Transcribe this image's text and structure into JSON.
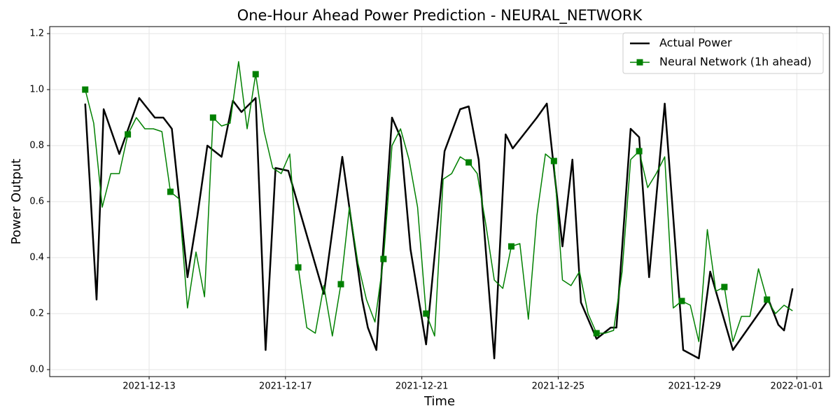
{
  "chart_data": {
    "type": "line",
    "title": "One-Hour Ahead Power Prediction - NEURAL_NETWORK",
    "x_label": "Time",
    "y_label": "Power Output",
    "xlim": [
      "2021-12-10T02:00",
      "2022-01-01T23:00"
    ],
    "xticks": [
      "2021-12-13",
      "2021-12-17",
      "2021-12-21",
      "2021-12-25",
      "2021-12-29",
      "2022-01-01"
    ],
    "ylim": [
      -0.025,
      1.225
    ],
    "yticks": [
      {
        "value": 0,
        "label": "0.0"
      },
      0.2,
      0.4,
      0.6,
      0.8,
      {
        "value": 1,
        "label": "1.0"
      },
      1.2
    ],
    "grid": true,
    "legend": "upper right",
    "series": [
      {
        "name": "Actual Power",
        "color": "#000000",
        "line_width": 2.5,
        "x": [
          "2021-12-11T03:00",
          "2021-12-11T11:00",
          "2021-12-11T16:00",
          "2021-12-12T03:00",
          "2021-12-12T17:00",
          "2021-12-13T04:00",
          "2021-12-13T10:00",
          "2021-12-13T16:00",
          "2021-12-14T03:00",
          "2021-12-14T10:00",
          "2021-12-14T17:00",
          "2021-12-15T03:00",
          "2021-12-15T11:00",
          "2021-12-15T17:00",
          "2021-12-16T03:00",
          "2021-12-16T10:00",
          "2021-12-16T17:00",
          "2021-12-17T02:00",
          "2021-12-17T11:00",
          "2021-12-18T03:00",
          "2021-12-18T16:00",
          "2021-12-19T06:00",
          "2021-12-19T10:00",
          "2021-12-19T16:00",
          "2021-12-20T03:00",
          "2021-12-20T09:00",
          "2021-12-20T16:00",
          "2021-12-21T03:00",
          "2021-12-21T16:00",
          "2021-12-22T03:00",
          "2021-12-22T09:00",
          "2021-12-22T16:00",
          "2021-12-23T03:00",
          "2021-12-23T11:00",
          "2021-12-23T16:00",
          "2021-12-24T09:00",
          "2021-12-24T16:00",
          "2021-12-25T03:00",
          "2021-12-25T10:00",
          "2021-12-25T16:00",
          "2021-12-26T03:00",
          "2021-12-26T13:00",
          "2021-12-26T17:00",
          "2021-12-27T03:00",
          "2021-12-27T09:00",
          "2021-12-27T16:00",
          "2021-12-28T03:00",
          "2021-12-28T16:00",
          "2021-12-29T03:00",
          "2021-12-29T11:00",
          "2021-12-30T03:00",
          "2021-12-31T04:00",
          "2021-12-31T11:00",
          "2021-12-31T15:00",
          "2021-12-31T21:00"
        ],
        "values": [
          0.95,
          0.25,
          0.93,
          0.77,
          0.97,
          0.9,
          0.9,
          0.86,
          0.33,
          0.55,
          0.8,
          0.76,
          0.96,
          0.92,
          0.97,
          0.07,
          0.72,
          0.71,
          0.55,
          0.27,
          0.76,
          0.25,
          0.15,
          0.07,
          0.9,
          0.83,
          0.43,
          0.09,
          0.78,
          0.93,
          0.94,
          0.75,
          0.04,
          0.84,
          0.79,
          0.9,
          0.95,
          0.44,
          0.75,
          0.24,
          0.11,
          0.15,
          0.15,
          0.86,
          0.83,
          0.33,
          0.95,
          0.07,
          0.04,
          0.35,
          0.07,
          0.25,
          0.16,
          0.14,
          0.29
        ]
      },
      {
        "name": "Neural Network (1h ahead)",
        "color": "#008000",
        "line_width": 1.5,
        "marker": "square",
        "markevery": 5,
        "x": [
          "2021-12-11T03:00",
          "2021-12-11T09:00",
          "2021-12-11T15:00",
          "2021-12-11T21:00",
          "2021-12-12T03:00",
          "2021-12-12T09:00",
          "2021-12-12T15:00",
          "2021-12-12T21:00",
          "2021-12-13T03:00",
          "2021-12-13T09:00",
          "2021-12-13T15:00",
          "2021-12-13T21:00",
          "2021-12-14T03:00",
          "2021-12-14T09:00",
          "2021-12-14T15:00",
          "2021-12-14T21:00",
          "2021-12-15T03:00",
          "2021-12-15T09:00",
          "2021-12-15T15:00",
          "2021-12-15T21:00",
          "2021-12-16T03:00",
          "2021-12-16T09:00",
          "2021-12-16T15:00",
          "2021-12-16T21:00",
          "2021-12-17T03:00",
          "2021-12-17T09:00",
          "2021-12-17T15:00",
          "2021-12-17T21:00",
          "2021-12-18T03:00",
          "2021-12-18T09:00",
          "2021-12-18T15:00",
          "2021-12-18T21:00",
          "2021-12-19T03:00",
          "2021-12-19T09:00",
          "2021-12-19T15:00",
          "2021-12-19T21:00",
          "2021-12-20T03:00",
          "2021-12-20T09:00",
          "2021-12-20T15:00",
          "2021-12-20T21:00",
          "2021-12-21T03:00",
          "2021-12-21T09:00",
          "2021-12-21T15:00",
          "2021-12-21T21:00",
          "2021-12-22T03:00",
          "2021-12-22T09:00",
          "2021-12-22T15:00",
          "2021-12-22T21:00",
          "2021-12-23T03:00",
          "2021-12-23T09:00",
          "2021-12-23T15:00",
          "2021-12-23T21:00",
          "2021-12-24T03:00",
          "2021-12-24T09:00",
          "2021-12-24T15:00",
          "2021-12-24T21:00",
          "2021-12-25T03:00",
          "2021-12-25T09:00",
          "2021-12-25T15:00",
          "2021-12-25T21:00",
          "2021-12-26T03:00",
          "2021-12-26T09:00",
          "2021-12-26T15:00",
          "2021-12-26T21:00",
          "2021-12-27T03:00",
          "2021-12-27T09:00",
          "2021-12-27T15:00",
          "2021-12-27T21:00",
          "2021-12-28T03:00",
          "2021-12-28T09:00",
          "2021-12-28T15:00",
          "2021-12-28T21:00",
          "2021-12-29T03:00",
          "2021-12-29T09:00",
          "2021-12-29T15:00",
          "2021-12-29T21:00",
          "2021-12-30T03:00",
          "2021-12-30T09:00",
          "2021-12-30T15:00",
          "2021-12-30T21:00",
          "2021-12-31T03:00",
          "2021-12-31T09:00",
          "2021-12-31T15:00",
          "2021-12-31T21:00"
        ],
        "values": [
          1.0,
          0.88,
          0.58,
          0.7,
          0.7,
          0.84,
          0.9,
          0.86,
          0.86,
          0.85,
          0.635,
          0.61,
          0.22,
          0.42,
          0.26,
          0.9,
          0.87,
          0.88,
          1.1,
          0.86,
          1.055,
          0.85,
          0.72,
          0.7,
          0.77,
          0.365,
          0.15,
          0.13,
          0.3,
          0.12,
          0.305,
          0.58,
          0.38,
          0.25,
          0.17,
          0.395,
          0.8,
          0.86,
          0.75,
          0.58,
          0.2,
          0.12,
          0.68,
          0.7,
          0.76,
          0.74,
          0.7,
          0.52,
          0.32,
          0.29,
          0.44,
          0.45,
          0.18,
          0.55,
          0.77,
          0.745,
          0.32,
          0.3,
          0.35,
          0.2,
          0.13,
          0.13,
          0.14,
          0.35,
          0.75,
          0.78,
          0.65,
          0.7,
          0.76,
          0.22,
          0.245,
          0.23,
          0.1,
          0.5,
          0.28,
          0.295,
          0.1,
          0.19,
          0.19,
          0.36,
          0.25,
          0.2,
          0.23,
          0.21
        ]
      }
    ]
  }
}
